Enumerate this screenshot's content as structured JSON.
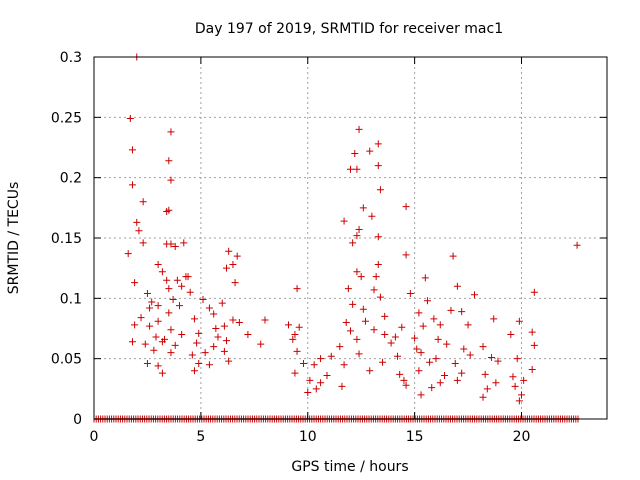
{
  "chart_data": {
    "type": "scatter",
    "title": "Day 197 of 2019, SRMTID for receiver mac1",
    "xlabel": "GPS time / hours",
    "ylabel": "SRMTID / TECUs",
    "xlim": [
      0,
      24
    ],
    "ylim": [
      0,
      0.3
    ],
    "x_ticks": [
      0,
      5,
      10,
      15,
      20
    ],
    "x_tick_labels": [
      "0",
      "5",
      "10",
      "15",
      "20"
    ],
    "y_ticks": [
      0,
      0.05,
      0.1,
      0.15,
      0.2,
      0.25,
      0.3
    ],
    "y_tick_labels": [
      "0",
      "0.05",
      "0.1",
      "0.15",
      "0.2",
      "0.25",
      "0.3"
    ],
    "grid": true,
    "marker": "+",
    "color": "#cc0000",
    "baseline_range": [
      0,
      22.7
    ],
    "series": [
      {
        "name": "SRMTID",
        "points": [
          [
            2.0,
            0.3
          ],
          [
            1.7,
            0.249
          ],
          [
            3.6,
            0.238
          ],
          [
            12.4,
            0.24
          ],
          [
            13.3,
            0.228
          ],
          [
            1.8,
            0.223
          ],
          [
            12.2,
            0.22
          ],
          [
            12.9,
            0.222
          ],
          [
            3.5,
            0.214
          ],
          [
            13.3,
            0.21
          ],
          [
            12.0,
            0.207
          ],
          [
            12.3,
            0.207
          ],
          [
            3.6,
            0.198
          ],
          [
            1.8,
            0.194
          ],
          [
            13.4,
            0.19
          ],
          [
            2.3,
            0.18
          ],
          [
            3.5,
            0.173
          ],
          [
            14.6,
            0.176
          ],
          [
            3.4,
            0.172
          ],
          [
            12.6,
            0.175
          ],
          [
            13.0,
            0.168
          ],
          [
            2.0,
            0.163
          ],
          [
            11.7,
            0.164
          ],
          [
            2.1,
            0.156
          ],
          [
            12.4,
            0.157
          ],
          [
            12.3,
            0.152
          ],
          [
            2.3,
            0.146
          ],
          [
            3.4,
            0.145
          ],
          [
            4.2,
            0.146
          ],
          [
            12.1,
            0.146
          ],
          [
            13.3,
            0.151
          ],
          [
            3.6,
            0.145
          ],
          [
            3.8,
            0.143
          ],
          [
            1.6,
            0.137
          ],
          [
            6.3,
            0.139
          ],
          [
            14.6,
            0.136
          ],
          [
            16.8,
            0.135
          ],
          [
            22.6,
            0.144
          ],
          [
            3.0,
            0.128
          ],
          [
            6.7,
            0.135
          ],
          [
            6.5,
            0.128
          ],
          [
            3.2,
            0.122
          ],
          [
            4.3,
            0.118
          ],
          [
            12.3,
            0.122
          ],
          [
            13.3,
            0.128
          ],
          [
            3.4,
            0.115
          ],
          [
            3.9,
            0.115
          ],
          [
            6.2,
            0.125
          ],
          [
            3.5,
            0.108
          ],
          [
            4.1,
            0.11
          ],
          [
            12.5,
            0.118
          ],
          [
            13.2,
            0.118
          ],
          [
            15.5,
            0.117
          ],
          [
            1.9,
            0.113
          ],
          [
            4.4,
            0.118
          ],
          [
            6.6,
            0.113
          ],
          [
            2.5,
            0.104
          ],
          [
            3.7,
            0.099
          ],
          [
            4.5,
            0.105
          ],
          [
            5.1,
            0.099
          ],
          [
            9.5,
            0.108
          ],
          [
            11.9,
            0.108
          ],
          [
            13.1,
            0.107
          ],
          [
            17.0,
            0.11
          ],
          [
            20.6,
            0.105
          ],
          [
            2.7,
            0.097
          ],
          [
            3.0,
            0.094
          ],
          [
            4.0,
            0.094
          ],
          [
            6.0,
            0.096
          ],
          [
            12.1,
            0.095
          ],
          [
            13.4,
            0.101
          ],
          [
            14.8,
            0.104
          ],
          [
            15.6,
            0.098
          ],
          [
            17.8,
            0.103
          ],
          [
            2.6,
            0.092
          ],
          [
            3.5,
            0.088
          ],
          [
            5.4,
            0.092
          ],
          [
            5.6,
            0.087
          ],
          [
            12.6,
            0.091
          ],
          [
            13.6,
            0.085
          ],
          [
            15.2,
            0.088
          ],
          [
            16.7,
            0.09
          ],
          [
            17.2,
            0.089
          ],
          [
            2.2,
            0.084
          ],
          [
            3.0,
            0.081
          ],
          [
            4.7,
            0.083
          ],
          [
            6.5,
            0.082
          ],
          [
            8.0,
            0.082
          ],
          [
            11.8,
            0.08
          ],
          [
            12.7,
            0.081
          ],
          [
            15.9,
            0.083
          ],
          [
            18.7,
            0.083
          ],
          [
            19.9,
            0.081
          ],
          [
            1.9,
            0.078
          ],
          [
            2.6,
            0.077
          ],
          [
            3.6,
            0.074
          ],
          [
            5.7,
            0.075
          ],
          [
            6.1,
            0.077
          ],
          [
            6.8,
            0.08
          ],
          [
            9.1,
            0.078
          ],
          [
            9.6,
            0.076
          ],
          [
            12.0,
            0.073
          ],
          [
            13.1,
            0.074
          ],
          [
            14.4,
            0.076
          ],
          [
            15.4,
            0.077
          ],
          [
            16.2,
            0.078
          ],
          [
            17.5,
            0.078
          ],
          [
            20.5,
            0.072
          ],
          [
            2.9,
            0.068
          ],
          [
            3.3,
            0.066
          ],
          [
            4.1,
            0.07
          ],
          [
            4.9,
            0.071
          ],
          [
            5.8,
            0.068
          ],
          [
            7.2,
            0.07
          ],
          [
            9.4,
            0.07
          ],
          [
            12.3,
            0.066
          ],
          [
            13.6,
            0.07
          ],
          [
            14.1,
            0.068
          ],
          [
            15.0,
            0.067
          ],
          [
            16.1,
            0.066
          ],
          [
            19.5,
            0.07
          ],
          [
            1.8,
            0.064
          ],
          [
            2.4,
            0.062
          ],
          [
            3.2,
            0.064
          ],
          [
            3.8,
            0.061
          ],
          [
            4.8,
            0.063
          ],
          [
            5.6,
            0.06
          ],
          [
            6.2,
            0.065
          ],
          [
            7.8,
            0.062
          ],
          [
            9.3,
            0.066
          ],
          [
            11.5,
            0.06
          ],
          [
            13.9,
            0.063
          ],
          [
            15.1,
            0.058
          ],
          [
            16.5,
            0.062
          ],
          [
            17.3,
            0.058
          ],
          [
            18.2,
            0.06
          ],
          [
            20.6,
            0.061
          ],
          [
            2.8,
            0.057
          ],
          [
            3.6,
            0.055
          ],
          [
            4.6,
            0.053
          ],
          [
            5.2,
            0.055
          ],
          [
            6.1,
            0.056
          ],
          [
            9.5,
            0.056
          ],
          [
            10.6,
            0.05
          ],
          [
            11.1,
            0.052
          ],
          [
            12.4,
            0.054
          ],
          [
            14.2,
            0.052
          ],
          [
            15.3,
            0.055
          ],
          [
            16.0,
            0.05
          ],
          [
            17.6,
            0.053
          ],
          [
            18.6,
            0.051
          ],
          [
            19.8,
            0.05
          ],
          [
            2.5,
            0.046
          ],
          [
            3.0,
            0.044
          ],
          [
            4.9,
            0.046
          ],
          [
            5.4,
            0.045
          ],
          [
            6.3,
            0.048
          ],
          [
            9.8,
            0.046
          ],
          [
            10.3,
            0.045
          ],
          [
            11.7,
            0.045
          ],
          [
            13.5,
            0.047
          ],
          [
            15.7,
            0.047
          ],
          [
            16.9,
            0.046
          ],
          [
            18.9,
            0.048
          ],
          [
            20.5,
            0.041
          ],
          [
            3.2,
            0.038
          ],
          [
            4.7,
            0.04
          ],
          [
            9.4,
            0.038
          ],
          [
            10.9,
            0.036
          ],
          [
            12.9,
            0.04
          ],
          [
            14.3,
            0.037
          ],
          [
            15.2,
            0.04
          ],
          [
            16.4,
            0.036
          ],
          [
            17.2,
            0.038
          ],
          [
            18.3,
            0.037
          ],
          [
            19.6,
            0.035
          ],
          [
            10.1,
            0.032
          ],
          [
            10.6,
            0.03
          ],
          [
            14.5,
            0.032
          ],
          [
            16.2,
            0.03
          ],
          [
            17.0,
            0.032
          ],
          [
            18.8,
            0.03
          ],
          [
            20.1,
            0.032
          ],
          [
            10.4,
            0.025
          ],
          [
            11.6,
            0.027
          ],
          [
            14.6,
            0.028
          ],
          [
            15.8,
            0.026
          ],
          [
            18.4,
            0.025
          ],
          [
            19.7,
            0.027
          ],
          [
            10.0,
            0.022
          ],
          [
            15.3,
            0.02
          ],
          [
            18.2,
            0.018
          ],
          [
            19.9,
            0.015
          ],
          [
            20.0,
            0.02
          ]
        ]
      }
    ]
  }
}
